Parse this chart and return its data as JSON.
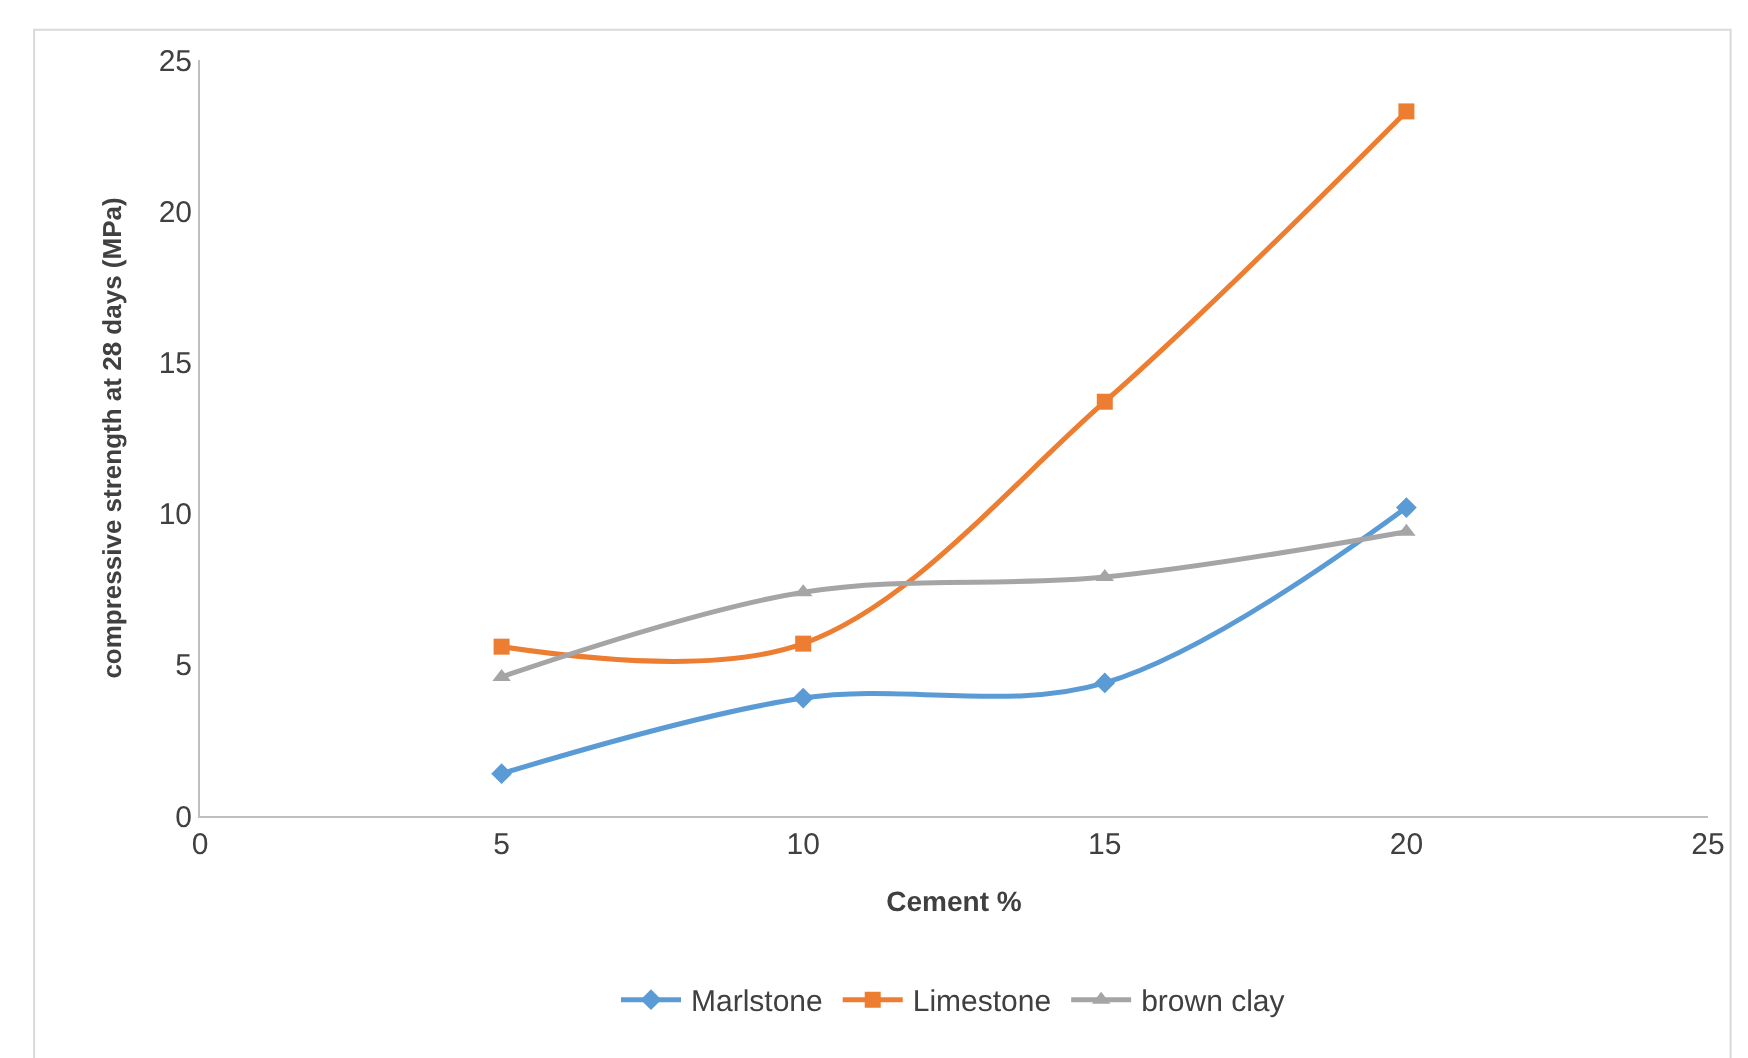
{
  "chart_data": {
    "type": "line",
    "xlabel": "Cement %",
    "ylabel": "compressive strength at 28 days (MPa)",
    "x": [
      5,
      10,
      15,
      20
    ],
    "series": [
      {
        "name": "Marlstone",
        "color": "#5b9bd5",
        "marker": "diamond",
        "values": [
          1.4,
          3.9,
          4.4,
          10.2
        ]
      },
      {
        "name": "Limestone",
        "color": "#ed7d31",
        "marker": "square",
        "values": [
          5.6,
          5.7,
          13.7,
          23.3
        ]
      },
      {
        "name": "brown clay",
        "color": "#a5a5a5",
        "marker": "triangle",
        "values": [
          4.6,
          7.4,
          7.9,
          9.4
        ]
      }
    ],
    "xlim": [
      0,
      25
    ],
    "xticks": [
      0,
      5,
      10,
      15,
      20,
      25
    ],
    "ylim": [
      0,
      25
    ],
    "yticks": [
      0,
      5,
      10,
      15,
      20,
      25
    ],
    "grid": false,
    "legend": "bottom",
    "line_style": "solid"
  }
}
